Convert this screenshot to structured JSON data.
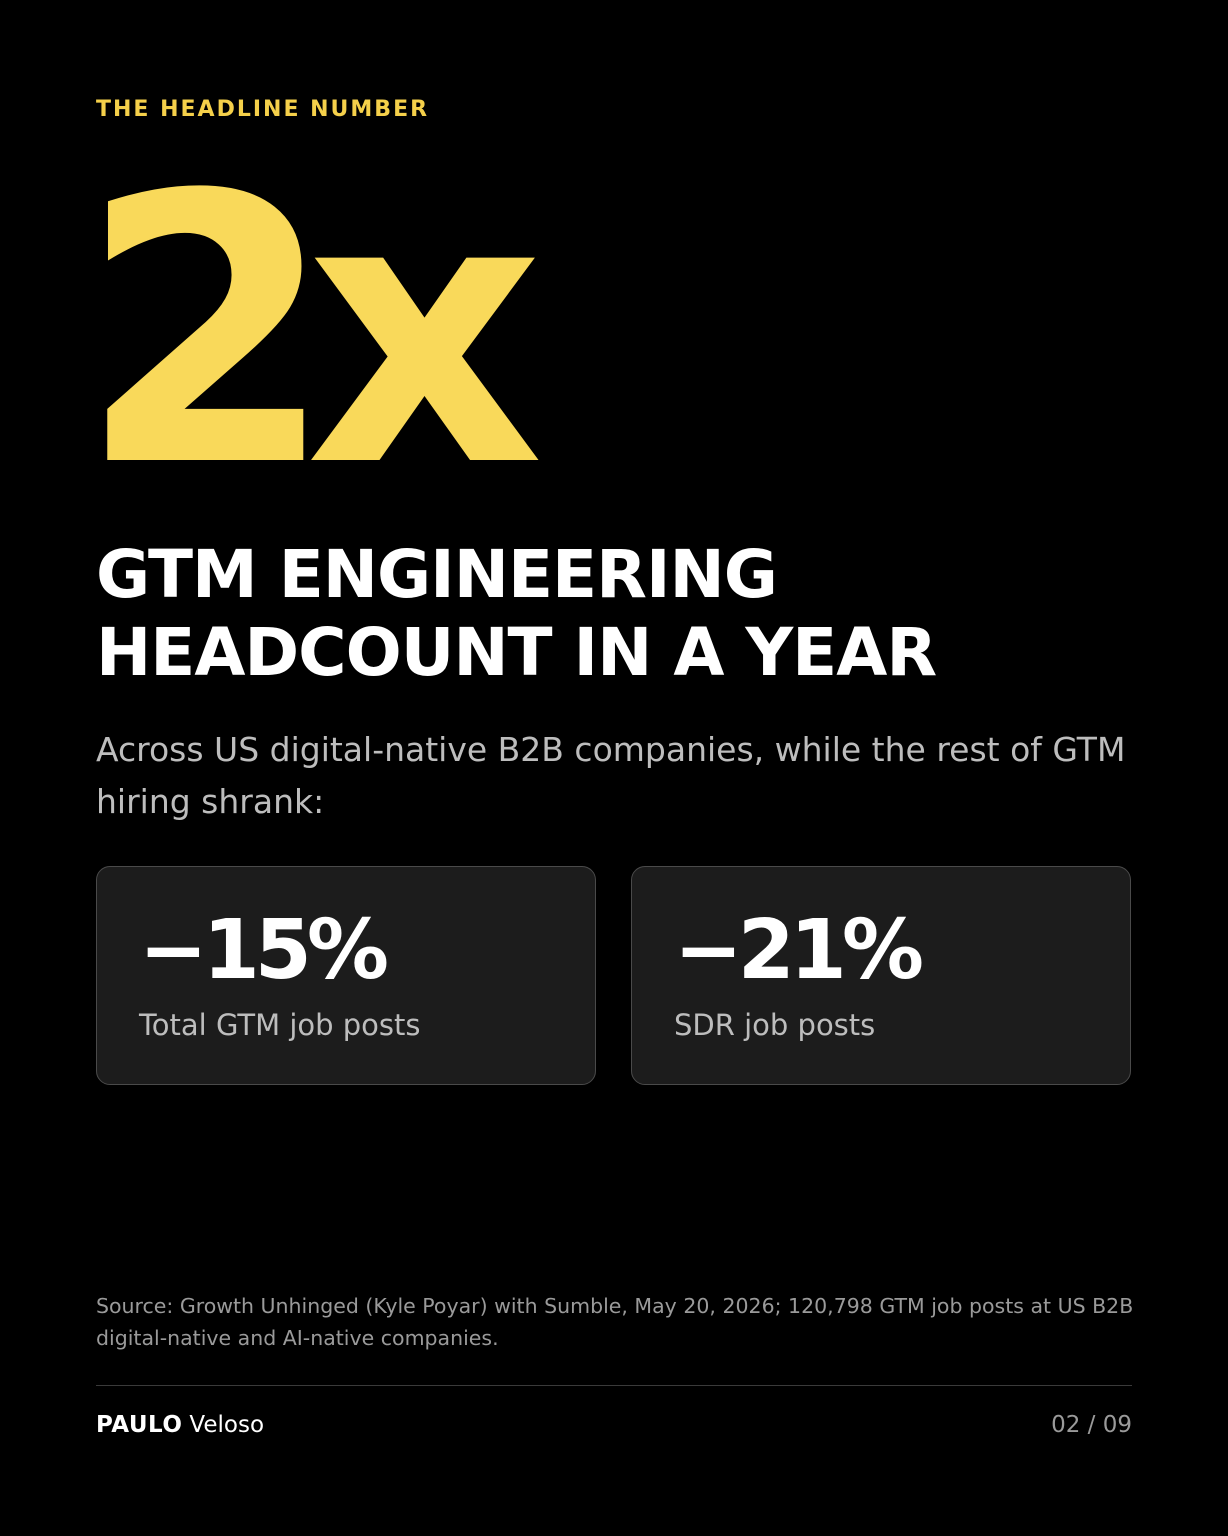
{
  "slide": {
    "eyebrow": "THE HEADLINE NUMBER",
    "hero_number": "2x",
    "headline_lines": [
      "GTM ENGINEERING",
      "HEADCOUNT IN A YEAR"
    ],
    "subhead": "Across US digital-native B2B companies, while the rest of GTM hiring shrank:",
    "stats": [
      {
        "value": "−15%",
        "label": "Total GTM job posts"
      },
      {
        "value": "−21%",
        "label": "SDR job posts"
      }
    ],
    "source": "Source: Growth Unhinged (Kyle Poyar) with Sumble, May 20, 2026; 120,798 GTM job posts at US B2B digital-native and AI-native companies."
  },
  "footer": {
    "brand_first": "PAULO",
    "brand_last": "Veloso",
    "page_counter": "02 / 09"
  },
  "colors": {
    "background": "#000000",
    "accent": "#f9d95a",
    "card": "#1c1c1c"
  }
}
